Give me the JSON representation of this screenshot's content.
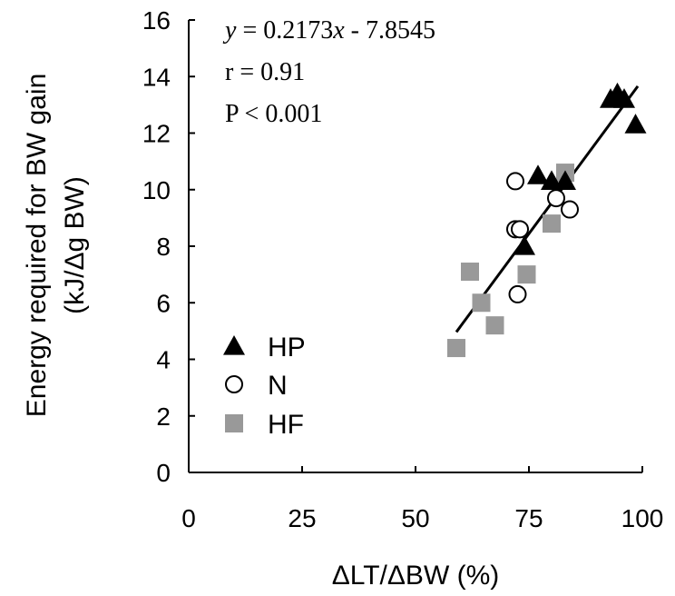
{
  "chart_data": {
    "type": "scatter",
    "title": "",
    "xlabel": "ΔLT/ΔBW (%)",
    "ylabel_line1": "Energy required for BW gain",
    "ylabel_line2": "(kJ/Δg BW)",
    "xlim": [
      0,
      100
    ],
    "ylim": [
      0,
      16
    ],
    "x_ticks": [
      0,
      25,
      50,
      75,
      100
    ],
    "y_ticks": [
      0,
      2,
      4,
      6,
      8,
      10,
      12,
      14,
      16
    ],
    "grid": false,
    "annotations": {
      "equation_y": "y",
      "equation_rest": " = 0.2173",
      "equation_x": "x",
      "equation_tail": " - 7.8545",
      "r": "r = 0.91",
      "p": "P < 0.001"
    },
    "regression": {
      "slope": 0.2173,
      "intercept": -7.8545,
      "x_range": [
        59,
        99
      ]
    },
    "legend_position": "bottom-left",
    "series": [
      {
        "name": "HP",
        "marker": "triangle",
        "color": "#000000",
        "points": [
          [
            74,
            8.0
          ],
          [
            77,
            10.5
          ],
          [
            80,
            10.3
          ],
          [
            83,
            10.3
          ],
          [
            93,
            13.2
          ],
          [
            94.5,
            13.4
          ],
          [
            96,
            13.2
          ],
          [
            98.5,
            12.3
          ]
        ]
      },
      {
        "name": "N",
        "marker": "open-circle",
        "color": "#000000",
        "points": [
          [
            72,
            10.3
          ],
          [
            72,
            8.6
          ],
          [
            73,
            8.6
          ],
          [
            72.5,
            6.3
          ],
          [
            81,
            9.7
          ],
          [
            84,
            9.3
          ]
        ]
      },
      {
        "name": "HF",
        "marker": "square",
        "color": "#999999",
        "points": [
          [
            59,
            4.4
          ],
          [
            62,
            7.1
          ],
          [
            64.5,
            6.0
          ],
          [
            67.5,
            5.2
          ],
          [
            74.5,
            7.0
          ],
          [
            80,
            8.8
          ],
          [
            83,
            10.6
          ]
        ]
      }
    ]
  }
}
